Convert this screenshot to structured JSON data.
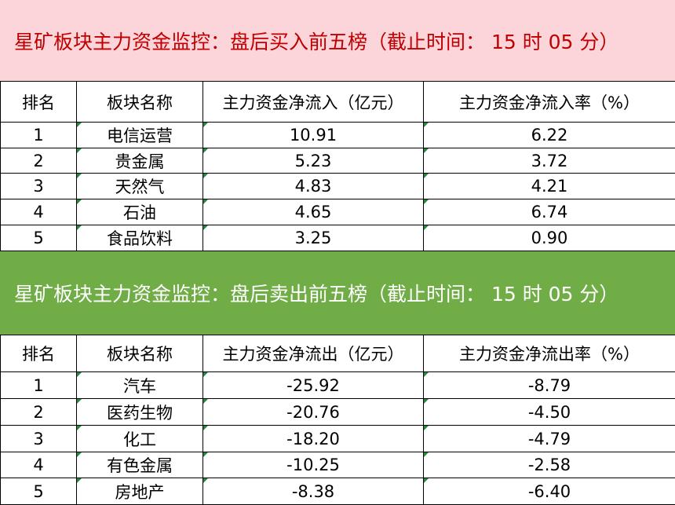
{
  "sections": [
    {
      "title": "星矿板块主力资金监控：盘后买入前五榜（截止时间： 15 时 05 分）",
      "table": {
        "header": [
          "排名",
          "板块名称",
          "主力资金净流入（亿元）",
          "主力资金净流入率（%）"
        ],
        "rows": [
          [
            "1",
            "电信运营",
            "10.91",
            "6.22"
          ],
          [
            "2",
            "贵金属",
            "5.23",
            "3.72"
          ],
          [
            "3",
            "天然气",
            "4.83",
            "4.21"
          ],
          [
            "4",
            "石油",
            "4.65",
            "6.74"
          ],
          [
            "5",
            "食品饮料",
            "3.25",
            "0.90"
          ]
        ]
      }
    },
    {
      "title": "星矿板块主力资金监控：盘后卖出前五榜（截止时间： 15 时 05 分）",
      "table": {
        "header": [
          "排名",
          "板块名称",
          "主力资金净流出（亿元）",
          "主力资金净流出率（%）"
        ],
        "rows": [
          [
            "1",
            "汽车",
            "-25.92",
            "-8.79"
          ],
          [
            "2",
            "医药生物",
            "-20.76",
            "-4.50"
          ],
          [
            "3",
            "化工",
            "-18.20",
            "-4.79"
          ],
          [
            "4",
            "有色金属",
            "-10.25",
            "-2.58"
          ],
          [
            "5",
            "房地产",
            "-8.38",
            "-6.40"
          ]
        ]
      }
    }
  ]
}
